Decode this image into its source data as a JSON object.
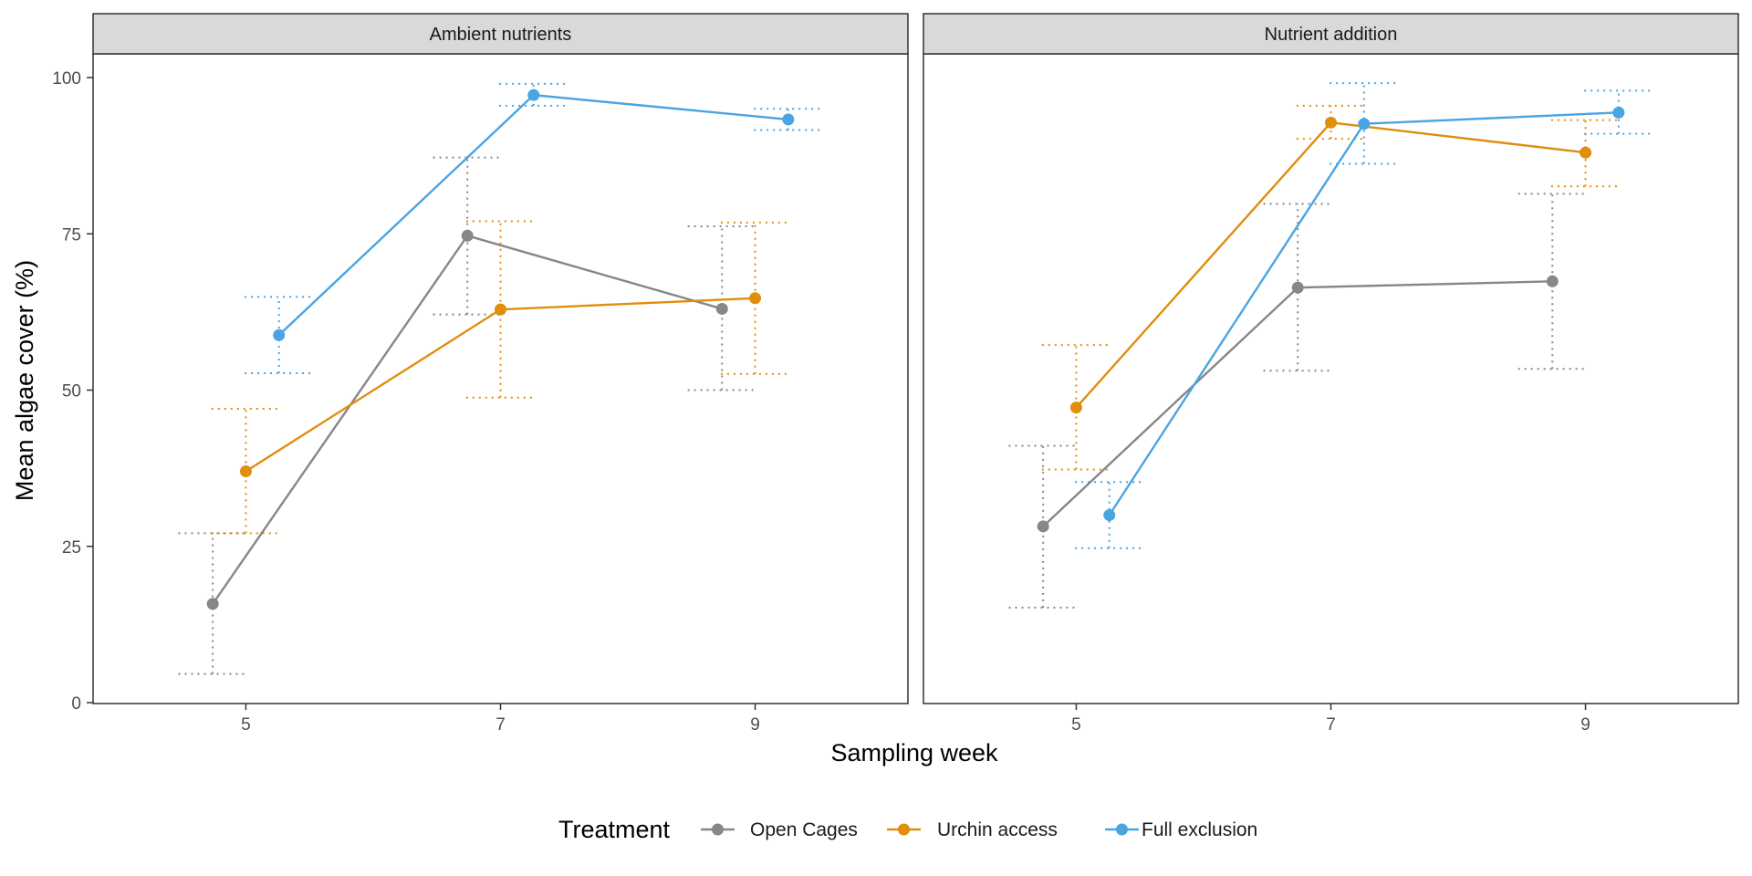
{
  "chart_data": {
    "type": "line",
    "xlabel": "Sampling week",
    "ylabel": "Mean algae cover (%)",
    "x_ticks": [
      "5",
      "7",
      "9"
    ],
    "y_ticks": [
      "0",
      "25",
      "50",
      "75",
      "100"
    ],
    "ylim": [
      0,
      100
    ],
    "xlim": [
      3.8,
      10.2
    ],
    "grid": false,
    "error_bars": "dotted",
    "legend": {
      "title": "Treatment",
      "position": "bottom",
      "entries": [
        "Open Cages",
        "Urchin access",
        "Full exclusion"
      ]
    },
    "panels": [
      {
        "strip": "Ambient nutrients",
        "series": [
          {
            "name": "Open Cages",
            "color": "#878787",
            "points": [
              {
                "week": 5,
                "y": 15.8,
                "lo": 4.6,
                "hi": 27.1
              },
              {
                "week": 7,
                "y": 74.7,
                "lo": 62.1,
                "hi": 87.2
              },
              {
                "week": 9,
                "y": 63.0,
                "lo": 50.0,
                "hi": 76.2
              }
            ]
          },
          {
            "name": "Urchin access",
            "color": "#E08E0B",
            "points": [
              {
                "week": 5,
                "y": 37.0,
                "lo": 27.1,
                "hi": 47.0
              },
              {
                "week": 7,
                "y": 62.9,
                "lo": 48.8,
                "hi": 77.0
              },
              {
                "week": 9,
                "y": 64.7,
                "lo": 52.6,
                "hi": 76.8
              }
            ]
          },
          {
            "name": "Full exclusion",
            "color": "#4AA4E2",
            "points": [
              {
                "week": 5,
                "y": 58.8,
                "lo": 52.7,
                "hi": 64.9
              },
              {
                "week": 7,
                "y": 97.2,
                "lo": 95.5,
                "hi": 99.0
              },
              {
                "week": 9,
                "y": 93.3,
                "lo": 91.6,
                "hi": 95.0
              }
            ]
          }
        ]
      },
      {
        "strip": "Nutrient addition",
        "series": [
          {
            "name": "Open Cages",
            "color": "#878787",
            "points": [
              {
                "week": 5,
                "y": 28.2,
                "lo": 15.2,
                "hi": 41.1
              },
              {
                "week": 7,
                "y": 66.4,
                "lo": 53.1,
                "hi": 79.8
              },
              {
                "week": 9,
                "y": 67.4,
                "lo": 53.4,
                "hi": 81.4
              }
            ]
          },
          {
            "name": "Urchin access",
            "color": "#E08E0B",
            "points": [
              {
                "week": 5,
                "y": 47.2,
                "lo": 37.3,
                "hi": 57.2
              },
              {
                "week": 7,
                "y": 92.8,
                "lo": 90.2,
                "hi": 95.5
              },
              {
                "week": 9,
                "y": 88.0,
                "lo": 82.6,
                "hi": 93.2
              }
            ]
          },
          {
            "name": "Full exclusion",
            "color": "#4AA4E2",
            "points": [
              {
                "week": 5,
                "y": 30.0,
                "lo": 24.7,
                "hi": 35.3
              },
              {
                "week": 7,
                "y": 92.6,
                "lo": 86.2,
                "hi": 99.1
              },
              {
                "week": 9,
                "y": 94.4,
                "lo": 91.0,
                "hi": 97.9
              }
            ]
          }
        ]
      }
    ]
  }
}
